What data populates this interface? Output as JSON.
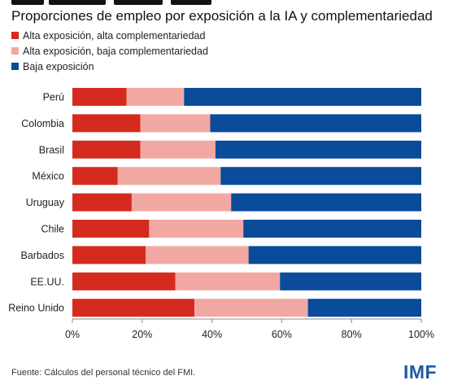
{
  "title": "Proporciones de empleo por exposición a la IA y complementariedad",
  "legend": [
    {
      "label": "Alta exposición, alta complementariedad",
      "color": "#d52b1e"
    },
    {
      "label": "Alta exposición, baja complementariedad",
      "color": "#f2a8a2"
    },
    {
      "label": "Baja exposición",
      "color": "#0a4b9a"
    }
  ],
  "source": "Fuente: Cálculos del personal técnico del FMI.",
  "logo": "IMF",
  "chart_data": {
    "type": "bar",
    "orientation": "horizontal",
    "stacked": true,
    "categories": [
      "Perú",
      "Colombia",
      "Brasil",
      "México",
      "Uruguay",
      "Chile",
      "Barbados",
      "EE.UU.",
      "Reino Unido"
    ],
    "series": [
      {
        "name": "Alta exposición, alta complementariedad",
        "color": "#d52b1e",
        "values": [
          15.5,
          19.5,
          19.5,
          13,
          17,
          22,
          21,
          29.5,
          35
        ]
      },
      {
        "name": "Alta exposición, baja complementariedad",
        "color": "#f2a8a2",
        "values": [
          16.5,
          20,
          21.5,
          29.5,
          28.5,
          27,
          29.5,
          30,
          32.5
        ]
      },
      {
        "name": "Baja exposición",
        "color": "#0a4b9a",
        "values": [
          68,
          60.5,
          59,
          57.5,
          54.5,
          51,
          49.5,
          40.5,
          32.5
        ]
      }
    ],
    "xlim": [
      0,
      100
    ],
    "xticks": [
      "0%",
      "20%",
      "40%",
      "60%",
      "80%",
      "100%"
    ],
    "grid": false,
    "legend_position": "top-left"
  }
}
